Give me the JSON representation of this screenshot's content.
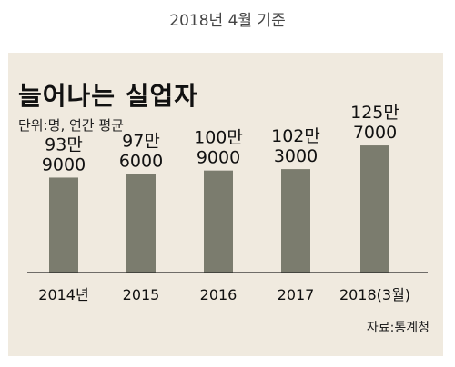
{
  "header": {
    "caption": "2018년 4월 기준"
  },
  "footer": {
    "source": "자료:통계청"
  },
  "chart_data": {
    "type": "bar",
    "title": "늘어나는 실업자",
    "unit": "단위:명, 연간 평균",
    "categories": [
      "2014년",
      "2015",
      "2016",
      "2017",
      "2018(3월)"
    ],
    "values": [
      939000,
      976000,
      1009000,
      1023000,
      1257000
    ],
    "value_labels": [
      [
        "93만",
        "9000"
      ],
      [
        "97만",
        "6000"
      ],
      [
        "100만",
        "9000"
      ],
      [
        "102만",
        "3000"
      ],
      [
        "125만",
        "7000"
      ]
    ],
    "bar_color": "#7b7c6e",
    "background_color": "#f0eadf",
    "ylim": [
      0,
      1500000
    ]
  }
}
